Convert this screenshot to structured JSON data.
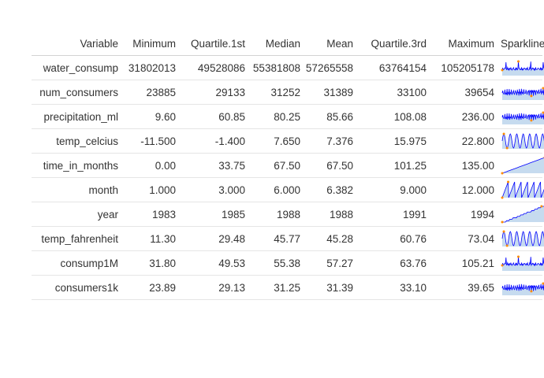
{
  "table": {
    "columns": [
      "Variable",
      "Minimum",
      "Quartile.1st",
      "Median",
      "Mean",
      "Quartile.3rd",
      "Maximum",
      "Sparkline"
    ],
    "rows": [
      {
        "variable": "water_consump",
        "cells": [
          "31802013",
          "49528086",
          "55381808",
          "57265558",
          "63764154",
          "105205178"
        ],
        "spark": "noisy"
      },
      {
        "variable": "num_consumers",
        "cells": [
          "23885",
          "29133",
          "31252",
          "31389",
          "33100",
          "39654"
        ],
        "spark": "dense"
      },
      {
        "variable": "precipitation_ml",
        "cells": [
          "9.60",
          "60.85",
          "80.25",
          "85.66",
          "108.08",
          "236.00"
        ],
        "spark": "dense"
      },
      {
        "variable": "temp_celcius",
        "cells": [
          "-11.500",
          "-1.400",
          "7.650",
          "7.376",
          "15.975",
          "22.800"
        ],
        "spark": "seasonal"
      },
      {
        "variable": "time_in_months",
        "cells": [
          "0.00",
          "33.75",
          "67.50",
          "67.50",
          "101.25",
          "135.00"
        ],
        "spark": "linear"
      },
      {
        "variable": "month",
        "cells": [
          "1.000",
          "3.000",
          "6.000",
          "6.382",
          "9.000",
          "12.000"
        ],
        "spark": "saw"
      },
      {
        "variable": "year",
        "cells": [
          "1983",
          "1985",
          "1988",
          "1988",
          "1991",
          "1994"
        ],
        "spark": "step"
      },
      {
        "variable": "temp_fahrenheit",
        "cells": [
          "11.30",
          "29.48",
          "45.77",
          "45.28",
          "60.76",
          "73.04"
        ],
        "spark": "seasonal"
      },
      {
        "variable": "consump1M",
        "cells": [
          "31.80",
          "49.53",
          "55.38",
          "57.27",
          "63.76",
          "105.21"
        ],
        "spark": "noisy"
      },
      {
        "variable": "consumers1k",
        "cells": [
          "23.89",
          "29.13",
          "31.25",
          "31.39",
          "33.10",
          "39.65"
        ],
        "spark": "dense"
      }
    ]
  },
  "colors": {
    "sparkline_line": "#0000ff",
    "sparkline_fill": "#c6dbef",
    "sparkline_marker": "#ff8c00"
  }
}
